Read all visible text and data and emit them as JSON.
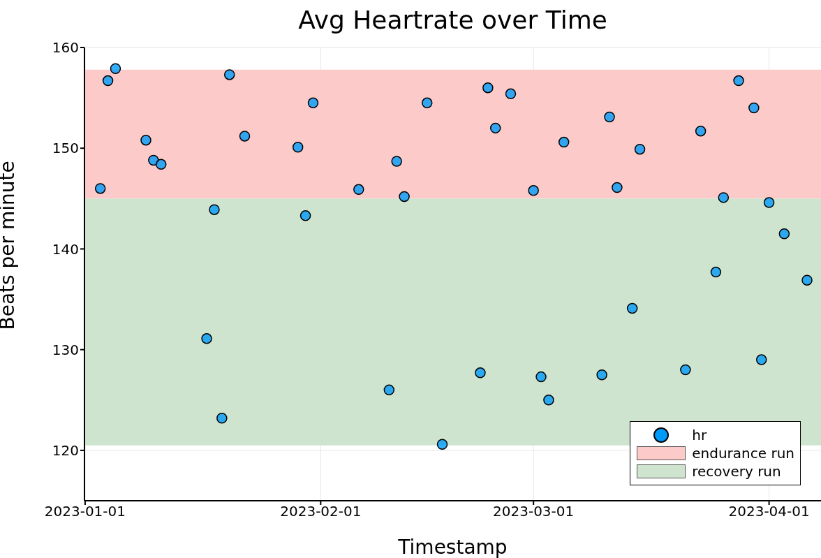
{
  "chart_data": {
    "type": "scatter",
    "title": "Avg Heartrate over Time",
    "xlabel": "Timestamp",
    "ylabel": "Beats per minute",
    "series": [
      {
        "name": "hr",
        "color": "#009af9",
        "x": [
          "2023-01-03",
          "2023-01-04",
          "2023-01-05",
          "2023-01-09",
          "2023-01-10",
          "2023-01-11",
          "2023-01-17",
          "2023-01-18",
          "2023-01-19",
          "2023-01-20",
          "2023-01-22",
          "2023-01-29",
          "2023-01-30",
          "2023-01-31",
          "2023-02-06",
          "2023-02-10",
          "2023-02-11",
          "2023-02-12",
          "2023-02-15",
          "2023-02-17",
          "2023-02-22",
          "2023-02-23",
          "2023-02-24",
          "2023-02-26",
          "2023-03-01",
          "2023-03-02",
          "2023-03-03",
          "2023-03-05",
          "2023-03-10",
          "2023-03-11",
          "2023-03-12",
          "2023-03-14",
          "2023-03-15",
          "2023-03-21",
          "2023-03-23",
          "2023-03-25",
          "2023-03-26",
          "2023-03-28",
          "2023-03-30",
          "2023-03-31",
          "2023-04-01",
          "2023-04-03",
          "2023-04-06"
        ],
        "values": [
          146.0,
          156.7,
          157.9,
          150.8,
          148.8,
          148.4,
          131.1,
          143.9,
          123.2,
          157.3,
          151.2,
          150.1,
          143.3,
          154.5,
          145.9,
          126.0,
          148.7,
          145.2,
          154.5,
          120.6,
          127.7,
          156.0,
          152.0,
          155.4,
          145.8,
          127.3,
          125.0,
          150.6,
          127.5,
          153.1,
          146.1,
          134.1,
          149.9,
          128.0,
          151.7,
          137.7,
          145.1,
          156.7,
          154.0,
          129.0,
          144.6,
          141.5,
          136.9
        ]
      }
    ],
    "bands": [
      {
        "axis": "y",
        "from": 145,
        "to": 157.8,
        "label": "endurance run",
        "color": "#fdcaca"
      },
      {
        "axis": "y",
        "from": 120.5,
        "to": 145,
        "label": "recovery run",
        "color": "#cfe4cf"
      }
    ],
    "xlim": [
      "2022-12-31T22:00",
      "2023-04-07T20:00"
    ],
    "xticks": [
      "2023-01-01",
      "2023-02-01",
      "2023-03-01",
      "2023-04-01"
    ],
    "ylim": [
      115,
      160
    ],
    "yticks": [
      120,
      130,
      140,
      150,
      160
    ],
    "grid": true,
    "legend": "bottom right",
    "marker": "circle"
  }
}
